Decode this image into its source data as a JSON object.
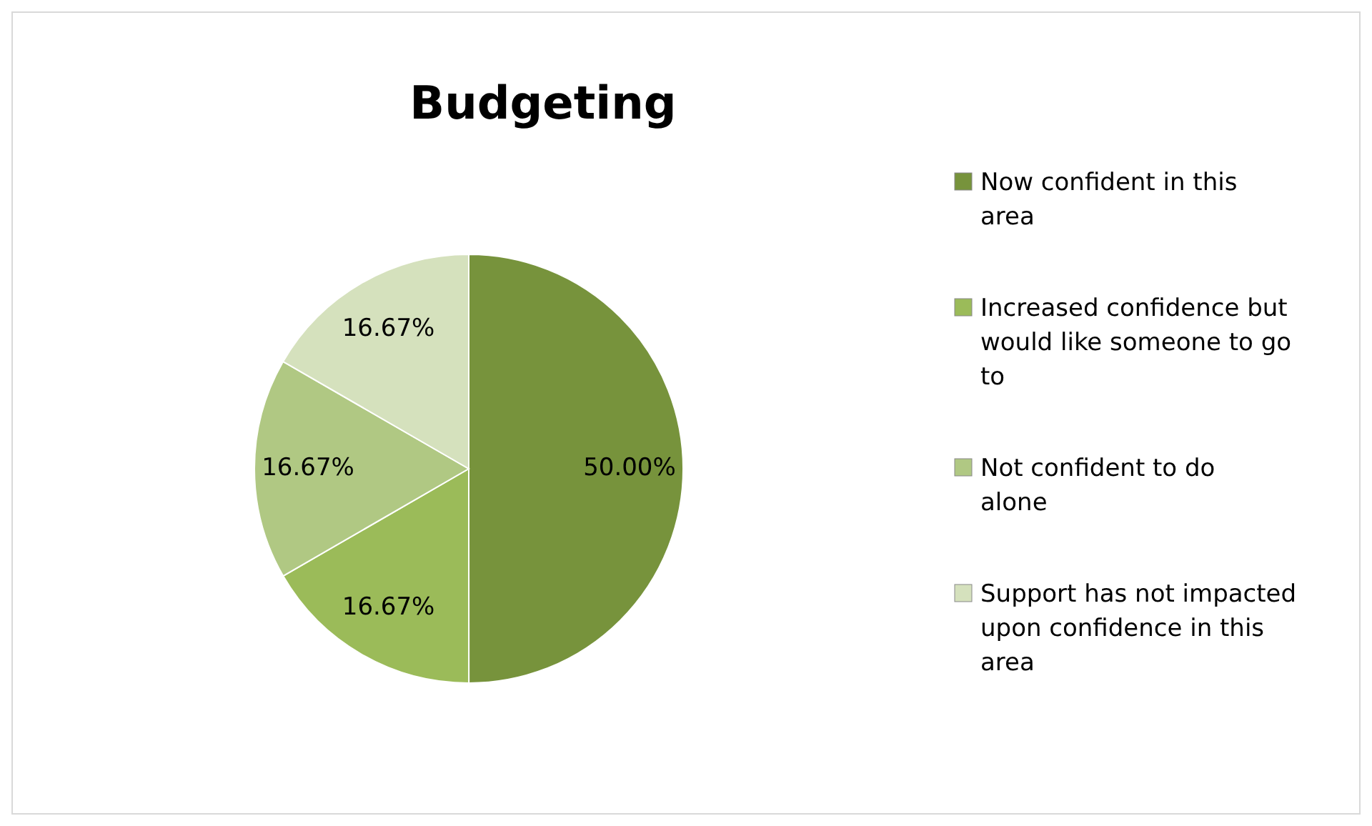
{
  "chart_data": {
    "type": "pie",
    "title": "Budgeting",
    "categories": [
      "Now confident in this area",
      "Increased confidence but would like someone to go to",
      "Not confident to do alone",
      "Support has not impacted upon confidence in this area"
    ],
    "values": [
      50,
      16.67,
      16.67,
      16.67
    ],
    "colors": [
      "#77933c",
      "#9bbb59",
      "#b0c883",
      "#d5e1bd"
    ],
    "value_labels": [
      "50.00%",
      "16.67%",
      "16.67%",
      "16.67%"
    ],
    "legend": "right"
  }
}
